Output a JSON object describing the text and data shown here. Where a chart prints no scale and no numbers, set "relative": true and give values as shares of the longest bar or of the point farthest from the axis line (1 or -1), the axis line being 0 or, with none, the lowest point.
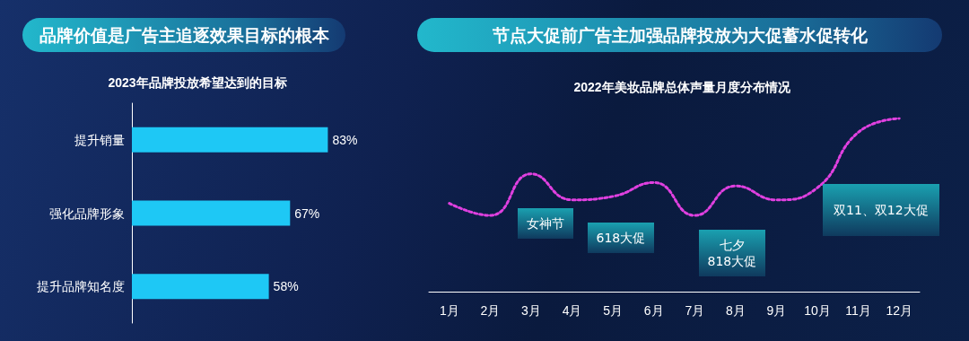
{
  "chart_data": [
    {
      "type": "bar",
      "title": "品牌价值是广告主追逐效果目标的根本",
      "subtitle": "2023年品牌投放希望达到的目标",
      "orientation": "horizontal",
      "categories": [
        "提升销量",
        "强化品牌形象",
        "提升品牌知名度"
      ],
      "values": [
        83,
        67,
        58
      ],
      "value_labels": [
        "83%",
        "67%",
        "58%"
      ],
      "color": "#1ec8f5"
    },
    {
      "type": "line",
      "title": "节点大促前广告主加强品牌投放为大促蓄水促转化",
      "subtitle": "2022年美妆品牌总体声量月度分布情况",
      "relative": true,
      "categories": [
        "1月",
        "2月",
        "3月",
        "4月",
        "5月",
        "6月",
        "7月",
        "8月",
        "9月",
        "10月",
        "11月",
        "12月"
      ],
      "series": [
        {
          "color": "#e040e0",
          "values": [
            0.51,
            0.44,
            0.68,
            0.53,
            0.55,
            0.63,
            0.44,
            0.61,
            0.53,
            0.6,
            0.92,
            1.0
          ]
        }
      ],
      "marker": "none",
      "line_style": "dotted",
      "annotations": [
        "女神节",
        "618大促",
        "七夕\n818大促",
        "双11、双12大促"
      ]
    }
  ]
}
